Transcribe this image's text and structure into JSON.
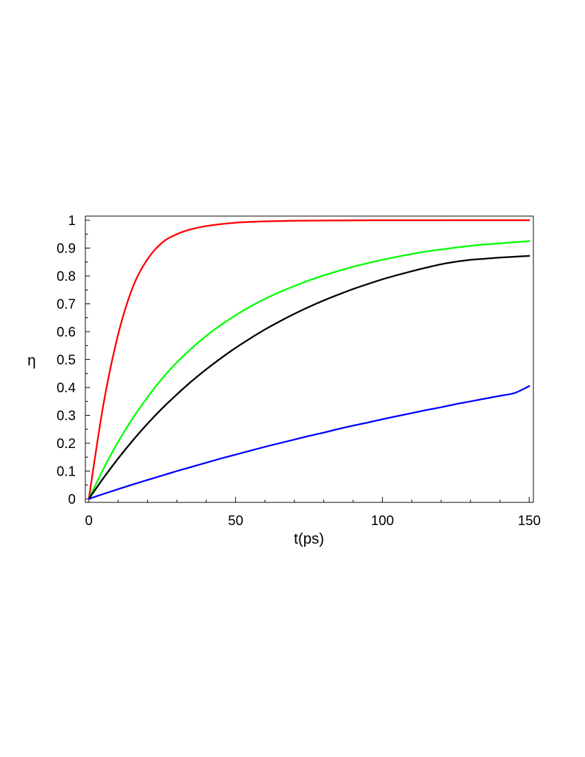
{
  "chart_data": {
    "type": "line",
    "title": "",
    "xlabel": "t(ps)",
    "ylabel": "η",
    "xlim": [
      0,
      150
    ],
    "ylim": [
      0,
      1
    ],
    "grid": false,
    "x_ticks": [
      0,
      50,
      100,
      150
    ],
    "x_tick_labels": [
      "0",
      "50",
      "100",
      "150"
    ],
    "y_ticks": [
      0,
      0.1,
      0.2,
      0.3,
      0.4,
      0.5,
      0.6,
      0.7,
      0.8,
      0.9,
      1
    ],
    "y_tick_labels": [
      "0",
      "0.1",
      "0.2",
      "0.3",
      "0.4",
      "0.5",
      "0.6",
      "0.7",
      "0.8",
      "0.9",
      "1"
    ],
    "x": [
      0,
      5,
      10,
      15,
      20,
      25,
      30,
      35,
      40,
      45,
      50,
      55,
      60,
      65,
      70,
      75,
      80,
      85,
      90,
      95,
      100,
      105,
      110,
      115,
      120,
      125,
      130,
      135,
      140,
      145,
      150
    ],
    "series": [
      {
        "color": "#ff0000",
        "values": [
          0,
          0.34,
          0.59,
          0.76,
          0.86,
          0.92,
          0.95,
          0.968,
          0.979,
          0.986,
          0.991,
          0.994,
          0.996,
          0.997,
          0.998,
          0.9985,
          0.999,
          0.9993,
          0.9995,
          0.9997,
          0.9998,
          0.9998,
          0.9999,
          0.9999,
          0.9999,
          1,
          1,
          1,
          1,
          1,
          1
        ]
      },
      {
        "color": "#00ff00",
        "values": [
          0,
          0.108,
          0.205,
          0.29,
          0.365,
          0.432,
          0.49,
          0.54,
          0.585,
          0.624,
          0.659,
          0.69,
          0.718,
          0.742,
          0.764,
          0.784,
          0.802,
          0.818,
          0.833,
          0.846,
          0.858,
          0.869,
          0.879,
          0.888,
          0.895,
          0.902,
          0.908,
          0.913,
          0.917,
          0.921,
          0.925
        ]
      },
      {
        "color": "#000000",
        "values": [
          0,
          0.075,
          0.145,
          0.21,
          0.27,
          0.325,
          0.375,
          0.422,
          0.465,
          0.505,
          0.542,
          0.576,
          0.608,
          0.637,
          0.664,
          0.689,
          0.712,
          0.733,
          0.753,
          0.771,
          0.788,
          0.803,
          0.817,
          0.83,
          0.842,
          0.851,
          0.858,
          0.862,
          0.866,
          0.869,
          0.872
        ]
      },
      {
        "color": "#0000ff",
        "values": [
          0,
          0.018,
          0.035,
          0.052,
          0.068,
          0.084,
          0.1,
          0.115,
          0.13,
          0.145,
          0.159,
          0.173,
          0.187,
          0.2,
          0.213,
          0.226,
          0.238,
          0.251,
          0.263,
          0.274,
          0.286,
          0.297,
          0.308,
          0.319,
          0.329,
          0.34,
          0.35,
          0.36,
          0.37,
          0.38,
          0.405
        ]
      }
    ]
  }
}
